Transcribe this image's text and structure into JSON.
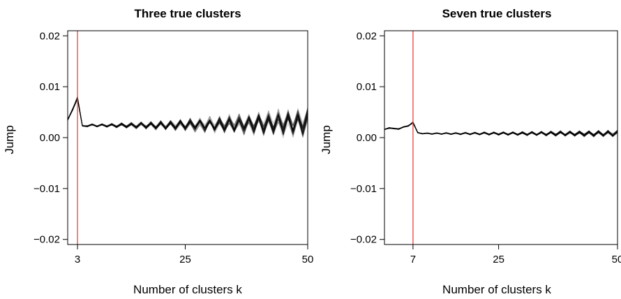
{
  "chart_data": [
    {
      "type": "line",
      "title": "Three true clusters",
      "xlabel": "Number of clusters k",
      "ylabel": "Jump",
      "xlim": [
        1,
        50
      ],
      "ylim": [
        -0.021,
        0.021
      ],
      "xticks": [
        3,
        25,
        50
      ],
      "yticks": [
        -0.02,
        -0.01,
        0.0,
        0.01,
        0.02
      ],
      "ytick_labels": [
        "−0.02",
        "−0.01",
        "0.00",
        "0.01",
        "0.02"
      ],
      "vline": {
        "x": 3,
        "color": "#e8423a"
      },
      "line_color": "#000000",
      "series_count": 40,
      "series_note": "Many overlapping semi-transparent jump curves for k = 1..50",
      "envelope": {
        "x": [
          1,
          2,
          3,
          4,
          5,
          10,
          15,
          20,
          25,
          30,
          35,
          40,
          45,
          48,
          50
        ],
        "center": [
          0.0035,
          0.0055,
          0.0078,
          0.0022,
          0.0024,
          0.0024,
          0.0024,
          0.0024,
          0.0025,
          0.0025,
          0.0026,
          0.0027,
          0.0028,
          0.0029,
          0.003
        ],
        "spread": [
          0.0004,
          0.0006,
          0.0009,
          0.0003,
          0.0004,
          0.0006,
          0.0009,
          0.0013,
          0.0017,
          0.0021,
          0.0026,
          0.0031,
          0.0036,
          0.004,
          0.0042
        ]
      }
    },
    {
      "type": "line",
      "title": "Seven true clusters",
      "xlabel": "Number of clusters k",
      "ylabel": "Jump",
      "xlim": [
        1,
        50
      ],
      "ylim": [
        -0.021,
        0.021
      ],
      "xticks": [
        7,
        25,
        50
      ],
      "yticks": [
        -0.02,
        -0.01,
        0.0,
        0.01,
        0.02
      ],
      "ytick_labels": [
        "−0.02",
        "−0.01",
        "0.00",
        "0.01",
        "0.02"
      ],
      "vline": {
        "x": 7,
        "color": "#e8423a"
      },
      "line_color": "#000000",
      "series_count": 40,
      "series_note": "Many overlapping semi-transparent jump curves for k = 1..50",
      "envelope": {
        "x": [
          1,
          2,
          3,
          4,
          5,
          6,
          7,
          8,
          10,
          15,
          20,
          25,
          30,
          35,
          40,
          45,
          50
        ],
        "center": [
          0.0016,
          0.0019,
          0.0018,
          0.0017,
          0.0021,
          0.0023,
          0.003,
          0.0009,
          0.0008,
          0.0008,
          0.0008,
          0.0008,
          0.0008,
          0.0008,
          0.0008,
          0.0008,
          0.0008
        ],
        "spread": [
          0.0002,
          0.0003,
          0.0003,
          0.0003,
          0.0003,
          0.0003,
          0.0005,
          0.0002,
          0.0002,
          0.0003,
          0.0004,
          0.0005,
          0.0006,
          0.0007,
          0.0008,
          0.0009,
          0.001
        ]
      }
    }
  ]
}
